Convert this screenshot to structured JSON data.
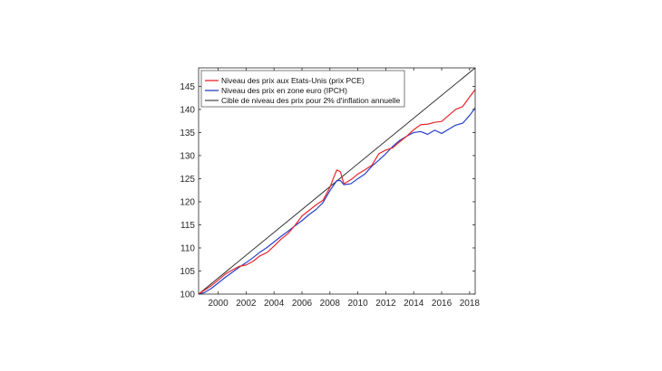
{
  "chart_data": {
    "type": "line",
    "title": "",
    "xlabel": "",
    "ylabel": "",
    "xlim": [
      1998.6,
      2018.4
    ],
    "ylim": [
      100,
      149
    ],
    "x_ticks": [
      2000,
      2002,
      2004,
      2006,
      2008,
      2010,
      2012,
      2014,
      2016,
      2018
    ],
    "y_ticks": [
      100,
      105,
      110,
      115,
      120,
      125,
      130,
      135,
      140,
      145
    ],
    "x_tick_labels": [
      "2000",
      "2002",
      "2004",
      "2006",
      "2008",
      "2010",
      "2012",
      "2014",
      "2016",
      "2018"
    ],
    "y_tick_labels": [
      "100",
      "105",
      "110",
      "115",
      "120",
      "125",
      "130",
      "135",
      "140",
      "145"
    ],
    "grid": false,
    "legend_position": "top-left",
    "series": [
      {
        "name": "Niveau des prix aux Etats-Unis (prix PCE)",
        "color": "#e8262a",
        "points": [
          [
            1998.6,
            100.0
          ],
          [
            1999.0,
            100.8
          ],
          [
            1999.5,
            101.8
          ],
          [
            2000.0,
            103.0
          ],
          [
            2000.5,
            104.3
          ],
          [
            2001.0,
            105.2
          ],
          [
            2001.5,
            106.0
          ],
          [
            2002.0,
            106.3
          ],
          [
            2002.5,
            107.1
          ],
          [
            2003.0,
            108.3
          ],
          [
            2003.5,
            109.0
          ],
          [
            2004.0,
            110.4
          ],
          [
            2004.5,
            111.9
          ],
          [
            2005.0,
            113.1
          ],
          [
            2005.5,
            114.9
          ],
          [
            2006.0,
            116.9
          ],
          [
            2006.5,
            118.1
          ],
          [
            2007.0,
            119.3
          ],
          [
            2007.5,
            120.3
          ],
          [
            2008.0,
            123.1
          ],
          [
            2008.3,
            125.5
          ],
          [
            2008.5,
            126.9
          ],
          [
            2008.75,
            126.5
          ],
          [
            2009.0,
            123.9
          ],
          [
            2009.3,
            124.4
          ],
          [
            2009.6,
            125.0
          ],
          [
            2010.0,
            126.0
          ],
          [
            2010.5,
            126.9
          ],
          [
            2011.0,
            127.9
          ],
          [
            2011.5,
            130.4
          ],
          [
            2012.0,
            131.2
          ],
          [
            2012.5,
            131.7
          ],
          [
            2013.0,
            133.0
          ],
          [
            2013.5,
            134.2
          ],
          [
            2014.0,
            135.6
          ],
          [
            2014.5,
            136.7
          ],
          [
            2015.0,
            136.8
          ],
          [
            2015.5,
            137.2
          ],
          [
            2016.0,
            137.4
          ],
          [
            2016.5,
            138.7
          ],
          [
            2017.0,
            140.0
          ],
          [
            2017.5,
            140.6
          ],
          [
            2018.0,
            142.7
          ],
          [
            2018.4,
            144.3
          ]
        ]
      },
      {
        "name": "Niveau des prix en zone euro (IPCH)",
        "color": "#2440c8",
        "points": [
          [
            1998.6,
            100.0
          ],
          [
            1999.0,
            100.3
          ],
          [
            1999.5,
            101.2
          ],
          [
            2000.0,
            102.4
          ],
          [
            2000.5,
            103.6
          ],
          [
            2001.0,
            104.7
          ],
          [
            2001.5,
            105.8
          ],
          [
            2002.0,
            106.8
          ],
          [
            2002.5,
            107.9
          ],
          [
            2003.0,
            109.1
          ],
          [
            2003.5,
            110.1
          ],
          [
            2004.0,
            111.3
          ],
          [
            2004.5,
            112.5
          ],
          [
            2005.0,
            113.6
          ],
          [
            2005.5,
            114.8
          ],
          [
            2006.0,
            115.9
          ],
          [
            2006.5,
            117.2
          ],
          [
            2007.0,
            118.3
          ],
          [
            2007.5,
            119.8
          ],
          [
            2008.0,
            122.4
          ],
          [
            2008.5,
            124.6
          ],
          [
            2008.75,
            124.6
          ],
          [
            2009.0,
            123.7
          ],
          [
            2009.5,
            123.9
          ],
          [
            2010.0,
            125.0
          ],
          [
            2010.5,
            126.0
          ],
          [
            2011.0,
            127.7
          ],
          [
            2011.5,
            129.0
          ],
          [
            2012.0,
            130.4
          ],
          [
            2012.5,
            132.0
          ],
          [
            2013.0,
            133.3
          ],
          [
            2013.5,
            134.2
          ],
          [
            2014.0,
            135.0
          ],
          [
            2014.5,
            135.2
          ],
          [
            2015.0,
            134.6
          ],
          [
            2015.5,
            135.5
          ],
          [
            2016.0,
            134.8
          ],
          [
            2016.5,
            135.7
          ],
          [
            2017.0,
            136.6
          ],
          [
            2017.5,
            137.0
          ],
          [
            2018.0,
            138.7
          ],
          [
            2018.4,
            140.3
          ]
        ]
      },
      {
        "name": "Cible de niveau des prix pour 2% d'inflation annuelle",
        "color": "#222222",
        "points": [
          [
            1998.6,
            100.0
          ],
          [
            2018.4,
            149.0
          ]
        ]
      }
    ]
  }
}
